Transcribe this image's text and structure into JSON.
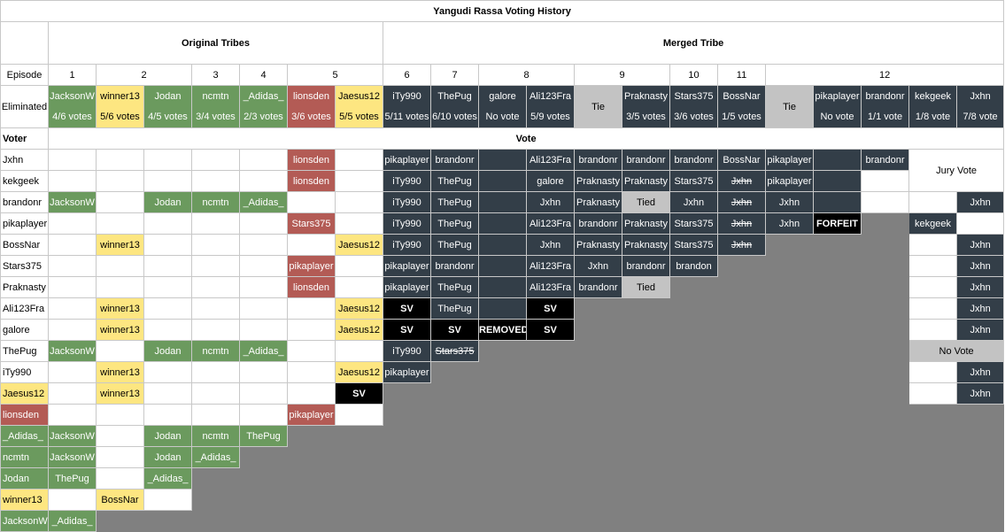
{
  "title": "Yangudi Rassa Voting History",
  "sections": {
    "original": "Original Tribes",
    "merged": "Merged Tribe"
  },
  "labels": {
    "episode": "Episode",
    "eliminated": "Eliminated",
    "voter": "Voter",
    "vote": "Vote",
    "jury_vote": "Jury Vote",
    "no_vote": "No Vote"
  },
  "episodes": [
    "1",
    "2",
    "3",
    "4",
    "5",
    "6",
    "7",
    "8",
    "9",
    "10",
    "11",
    "12"
  ],
  "eliminated": [
    {
      "name": "JacksonW",
      "votes": "4/6 votes"
    },
    {
      "name": "winner13",
      "votes": "5/6 votes"
    },
    {
      "name": "Jodan",
      "votes": "4/5 votes"
    },
    {
      "name": "ncmtn",
      "votes": "3/4 votes"
    },
    {
      "name": "_Adidas_",
      "votes": "2/3 votes"
    },
    {
      "name": "lionsden",
      "votes": "3/6 votes"
    },
    {
      "name": "Jaesus12",
      "votes": "5/5 votes"
    },
    {
      "name": "iTy990",
      "votes": "5/11 votes"
    },
    {
      "name": "ThePug",
      "votes": "6/10 votes"
    },
    {
      "name": "galore",
      "votes": "No vote"
    },
    {
      "name": "Ali123Fra",
      "votes": "5/9 votes"
    },
    {
      "name": "Tie",
      "votes": ""
    },
    {
      "name": "Praknasty",
      "votes": "3/5 votes"
    },
    {
      "name": "Stars375",
      "votes": "3/6 votes"
    },
    {
      "name": "BossNar",
      "votes": "1/5 votes"
    },
    {
      "name": "Tie",
      "votes": ""
    },
    {
      "name": "pikaplayer",
      "votes": "No vote"
    },
    {
      "name": "brandonr",
      "votes": "1/1 vote"
    },
    {
      "name": "kekgeek",
      "votes": "1/8 vote"
    },
    {
      "name": "Jxhn",
      "votes": "7/8 vote"
    }
  ],
  "voters": [
    "Jxhn",
    "kekgeek",
    "brandonr",
    "pikaplayer",
    "BossNar",
    "Stars375",
    "Praknasty",
    "Ali123Fra",
    "galore",
    "ThePug",
    "iTy990",
    "Jaesus12",
    "lionsden",
    "_Adidas_",
    "ncmtn",
    "Jodan",
    "winner13",
    "JacksonW"
  ],
  "votes": {
    "jxhn": [
      "",
      "",
      "",
      "",
      "",
      "lionsden",
      "",
      "pikaplayer",
      "brandonr",
      "",
      "Ali123Fra",
      "brandonr",
      "brandonr",
      "brandonr",
      "BossNar",
      "pikaplayer",
      "",
      "brandonr"
    ],
    "kekgeek": [
      "",
      "",
      "",
      "",
      "",
      "lionsden",
      "",
      "iTy990",
      "ThePug",
      "",
      "galore",
      "Praknasty",
      "Praknasty",
      "Stars375",
      "Jxhn",
      "pikaplayer",
      "",
      ""
    ],
    "brandonr": [
      "JacksonW",
      "",
      "Jodan",
      "ncmtn",
      "_Adidas_",
      "",
      "",
      "iTy990",
      "ThePug",
      "",
      "Jxhn",
      "Praknasty",
      "Tied",
      "Jxhn",
      "Jxhn",
      "Jxhn",
      "",
      "",
      "",
      "Jxhn"
    ],
    "pikaplayer": [
      "",
      "",
      "",
      "",
      "",
      "Stars375",
      "",
      "iTy990",
      "ThePug",
      "",
      "Ali123Fra",
      "brandonr",
      "Praknasty",
      "Stars375",
      "Jxhn",
      "Jxhn",
      "FORFEIT",
      "kekgeek",
      ""
    ],
    "bossnar": [
      "",
      "winner13",
      "",
      "",
      "",
      "",
      "Jaesus12",
      "iTy990",
      "ThePug",
      "",
      "Jxhn",
      "Praknasty",
      "Praknasty",
      "Stars375",
      "Jxhn",
      "",
      "Jxhn"
    ],
    "stars375": [
      "",
      "",
      "",
      "",
      "",
      "pikaplayer",
      "",
      "pikaplayer",
      "brandonr",
      "",
      "Ali123Fra",
      "Jxhn",
      "brandonr",
      "brandon",
      "",
      "Jxhn"
    ],
    "praknasty": [
      "",
      "",
      "",
      "",
      "",
      "lionsden",
      "",
      "pikaplayer",
      "ThePug",
      "",
      "Ali123Fra",
      "brandonr",
      "Tied",
      "",
      "Jxhn"
    ],
    "ali123fra": [
      "",
      "winner13",
      "",
      "",
      "",
      "",
      "Jaesus12",
      "SV",
      "ThePug",
      "",
      "SV",
      "",
      "Jxhn"
    ],
    "galore": [
      "",
      "winner13",
      "",
      "",
      "",
      "",
      "Jaesus12",
      "SV",
      "SV",
      "REMOVED",
      "SV",
      "",
      "Jxhn"
    ],
    "thepug": [
      "JacksonW",
      "",
      "Jodan",
      "ncmtn",
      "_Adidas_",
      "",
      "",
      "iTy990",
      "Stars375",
      "No Vote"
    ],
    "ity990": [
      "",
      "winner13",
      "",
      "",
      "",
      "",
      "Jaesus12",
      "pikaplayer",
      "",
      "Jxhn"
    ],
    "jaesus12": [
      "",
      "winner13",
      "",
      "",
      "",
      "",
      "SV",
      "",
      "Jxhn"
    ],
    "lionsden": [
      "",
      "",
      "",
      "",
      "",
      "pikaplayer",
      ""
    ],
    "adidas": [
      "JacksonW",
      "",
      "Jodan",
      "ncmtn",
      "ThePug"
    ],
    "ncmtn": [
      "JacksonW",
      "",
      "Jodan",
      "_Adidas_"
    ],
    "jodan": [
      "ThePug",
      "",
      "_Adidas_"
    ],
    "winner13": [
      "",
      "BossNar"
    ],
    "jacksonw": [
      "_Adidas_"
    ]
  },
  "colors": {
    "green": "#6b9a5e",
    "yellow": "#fde681",
    "red": "#b35b55",
    "dark": "#333e48",
    "black": "#000000",
    "light-gray": "#c3c3c3",
    "gray": "#808080"
  }
}
